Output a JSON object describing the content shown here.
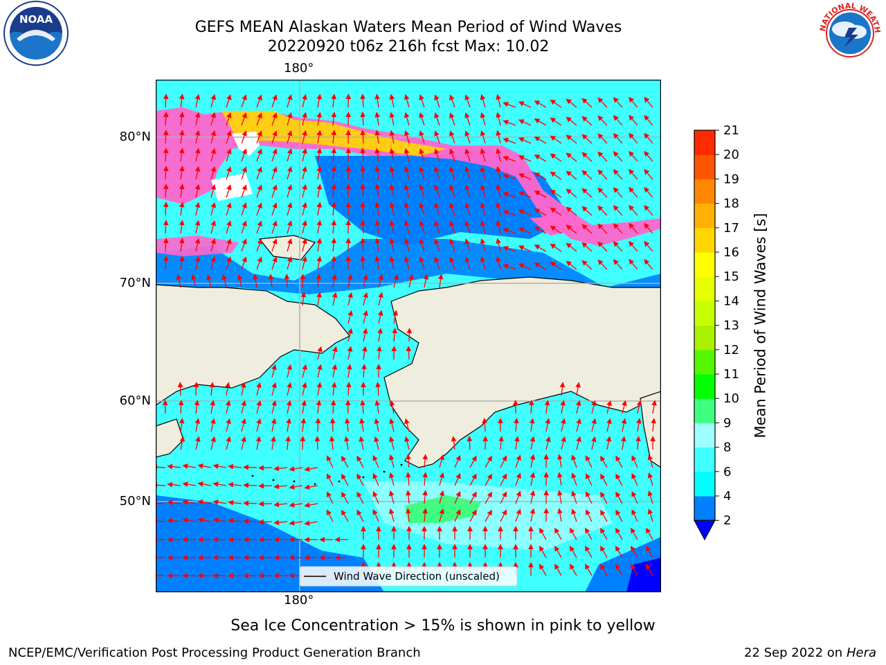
{
  "title": {
    "line1": "GEFS MEAN Alaskan Waters Mean Period of Wind Waves",
    "line2": "20220920 t06z 216h fcst   Max: 10.02"
  },
  "map": {
    "lon_labels": [
      "180°",
      "180°"
    ],
    "lat_labels": [
      "80°N",
      "70°N",
      "60°N",
      "50°N"
    ],
    "legend_label": "Wind Wave Direction (unscaled)",
    "colors": {
      "land": "#efedde",
      "coast": "#000000",
      "grid": "#b0b0b0",
      "arrow": "#ff0000"
    }
  },
  "colorbar": {
    "title": "Mean Period of Wind Waves [s]",
    "ticks": [
      "2",
      "4",
      "6",
      "8",
      "9",
      "10",
      "11",
      "12",
      "13",
      "14",
      "15",
      "16",
      "17",
      "18",
      "19",
      "20",
      "21"
    ],
    "colors": [
      "#0080ff",
      "#00ffff",
      "#40ffff",
      "#9fffff",
      "#40ff80",
      "#00ff00",
      "#55f700",
      "#aaf000",
      "#c8ff00",
      "#e6ff00",
      "#ffff00",
      "#ffd700",
      "#ffb000",
      "#ff8800",
      "#ff5500",
      "#ff2a00"
    ],
    "extend_color": "#0000ff"
  },
  "caption": "Sea Ice Concentration > 15% is shown in pink to yellow",
  "credit_left": "NCEP/EMC/Verification Post Processing Product Generation Branch",
  "credit_right_date": "22 Sep 2022 on",
  "credit_right_host": "Hera",
  "logos": {
    "noaa_text": "NOAA",
    "nws_text": "NATIONAL WEATHER SERVICE"
  }
}
